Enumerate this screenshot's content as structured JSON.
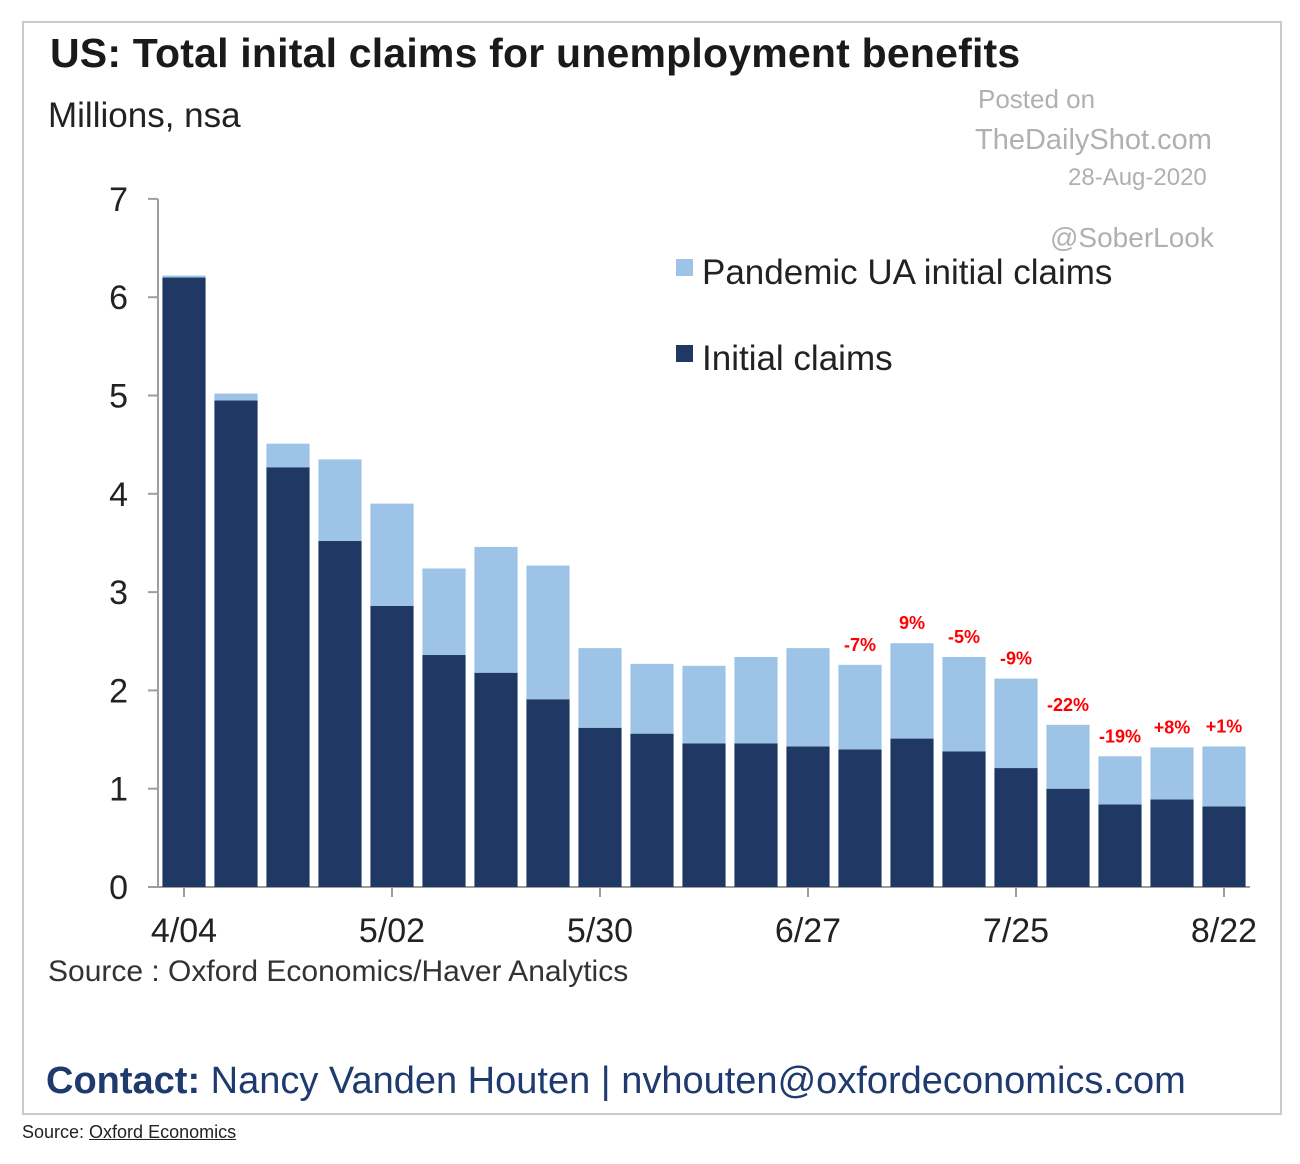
{
  "header": {
    "title": "US: Total inital claims for unemployment benefits",
    "subtitle": "Millions, nsa"
  },
  "watermark": {
    "line1": "Posted on",
    "line2": "TheDailyShot.com",
    "line3": "28-Aug-2020",
    "line4": "@SoberLook"
  },
  "footer": {
    "source": "Source : Oxford Economics/Haver Analytics",
    "contact_label": "Contact:",
    "contact_text": " Nancy Vanden Houten | nvhouten@oxfordeconomics.com"
  },
  "credit": {
    "prefix": "Source: ",
    "link": "Oxford Economics"
  },
  "colors": {
    "initial": "#1f3864",
    "pandemic": "#9dc3e6",
    "annotation": "#ff0000",
    "axis": "#9e9e9e"
  },
  "chart_data": {
    "type": "bar",
    "stacked": true,
    "title": "US: Total inital claims for unemployment benefits",
    "subtitle": "Millions, nsa",
    "ylim": [
      0,
      7
    ],
    "yticks": [
      0,
      1,
      2,
      3,
      4,
      5,
      6,
      7
    ],
    "xtick_labels": [
      "4/04",
      "5/02",
      "5/30",
      "6/27",
      "7/25",
      "8/22"
    ],
    "categories": [
      "4/04",
      "4/11",
      "4/18",
      "4/25",
      "5/02",
      "5/09",
      "5/16",
      "5/23",
      "5/30",
      "6/06",
      "6/13",
      "6/20",
      "6/27",
      "7/04",
      "7/11",
      "7/18",
      "7/25",
      "8/01",
      "8/08",
      "8/15",
      "8/22"
    ],
    "series": [
      {
        "name": "Initial claims",
        "color": "#1f3864",
        "values": [
          6.2,
          4.95,
          4.27,
          3.52,
          2.86,
          2.36,
          2.18,
          1.91,
          1.62,
          1.56,
          1.46,
          1.46,
          1.43,
          1.4,
          1.51,
          1.38,
          1.21,
          1.0,
          0.84,
          0.89,
          0.82
        ]
      },
      {
        "name": "Pandemic UA initial claims",
        "color": "#9dc3e6",
        "values": [
          0.02,
          0.07,
          0.24,
          0.83,
          1.04,
          0.88,
          1.28,
          1.36,
          0.81,
          0.71,
          0.79,
          0.88,
          1.0,
          0.86,
          0.97,
          0.96,
          0.91,
          0.65,
          0.49,
          0.53,
          0.61
        ]
      }
    ],
    "legend": {
      "position": "top-right",
      "entries": [
        "Pandemic UA initial claims",
        "Initial claims"
      ]
    },
    "annotations": [
      {
        "category": "7/04",
        "text": "-7%"
      },
      {
        "category": "7/11",
        "text": "9%"
      },
      {
        "category": "7/18",
        "text": "-5%"
      },
      {
        "category": "7/25",
        "text": "-9%"
      },
      {
        "category": "8/01",
        "text": "-22%"
      },
      {
        "category": "8/08",
        "text": "-19%"
      },
      {
        "category": "8/15",
        "text": "+8%"
      },
      {
        "category": "8/22",
        "text": "+1%"
      }
    ],
    "source": "Source : Oxford Economics/Haver Analytics"
  }
}
